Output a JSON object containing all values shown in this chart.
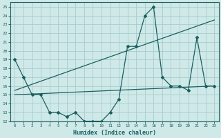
{
  "xlabel": "Humidex (Indice chaleur)",
  "xlim": [
    -0.5,
    23.5
  ],
  "ylim": [
    12,
    25.5
  ],
  "xticks": [
    0,
    1,
    2,
    3,
    4,
    5,
    6,
    7,
    8,
    9,
    10,
    11,
    12,
    13,
    14,
    15,
    16,
    17,
    18,
    19,
    20,
    21,
    22,
    23
  ],
  "yticks": [
    12,
    13,
    14,
    15,
    16,
    17,
    18,
    19,
    20,
    21,
    22,
    23,
    24,
    25
  ],
  "bg_color": "#cfe8e8",
  "line_color": "#1a5f5f",
  "grid_color": "#a8cccc",
  "line1_x": [
    0,
    1,
    2,
    3,
    4,
    5,
    6,
    7,
    8,
    9,
    10,
    11,
    12,
    13,
    14,
    15,
    16,
    17,
    18,
    19,
    20,
    21,
    22,
    23
  ],
  "line1_y": [
    19,
    17,
    15,
    15,
    13,
    13,
    12.5,
    13,
    12,
    12,
    12,
    13,
    14.5,
    20.5,
    20.5,
    24,
    25,
    17,
    16,
    16,
    15.5,
    21.5,
    16,
    16
  ],
  "line2_x": [
    0,
    23
  ],
  "line2_y": [
    15,
    16
  ],
  "line3_x": [
    0,
    23
  ],
  "line3_y": [
    15.5,
    23.5
  ]
}
